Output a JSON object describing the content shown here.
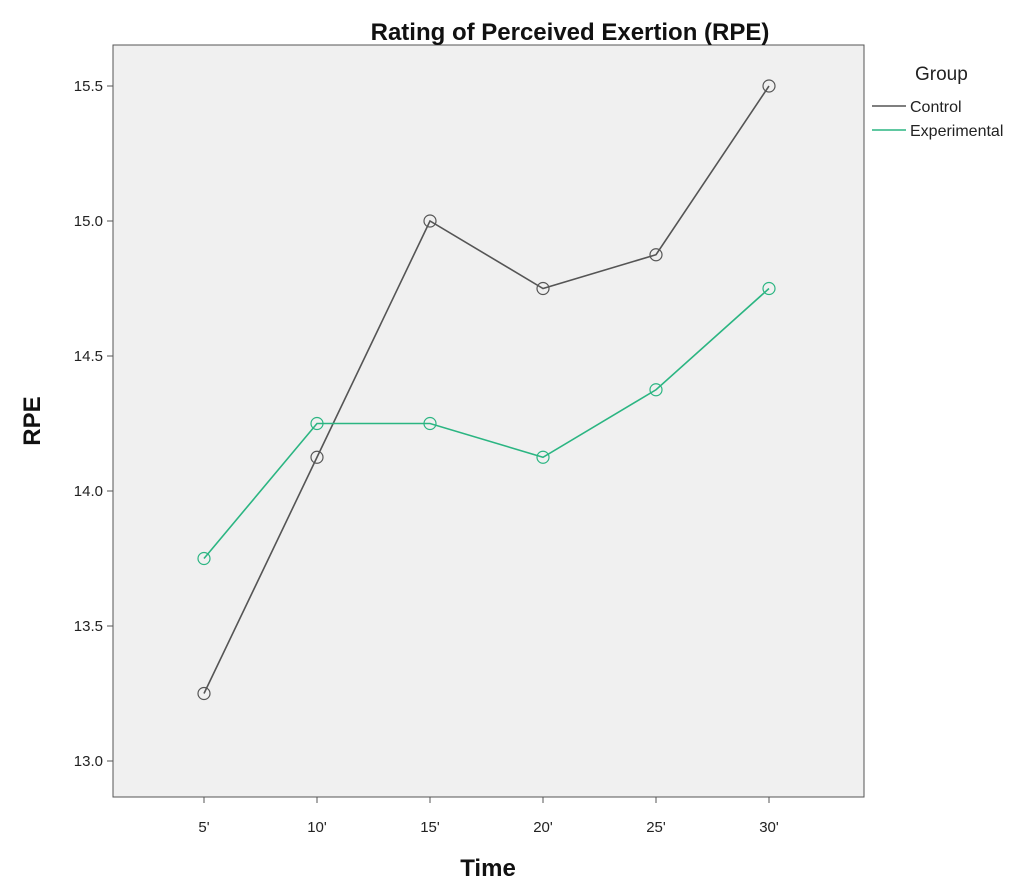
{
  "chart_data": {
    "type": "line",
    "title": "Rating of Perceived Exertion (RPE)",
    "xlabel": "Time",
    "ylabel": "RPE",
    "categories": [
      "5'",
      "10'",
      "15'",
      "20'",
      "25'",
      "30'"
    ],
    "ylim": [
      12.95,
      15.6
    ],
    "yticks": [
      13.0,
      13.5,
      14.0,
      14.5,
      15.0,
      15.5
    ],
    "ytick_labels": [
      "13.0",
      "13.5",
      "14.0",
      "14.5",
      "15.0",
      "15.5"
    ],
    "grid": false,
    "legend": {
      "title": "Group",
      "placement": "right"
    },
    "series": [
      {
        "name": "Control",
        "color": "#555555",
        "values": [
          13.25,
          14.125,
          15.0,
          14.75,
          14.875,
          15.5
        ]
      },
      {
        "name": "Experimental",
        "color": "#2bb582",
        "values": [
          13.75,
          14.25,
          14.25,
          14.125,
          14.375,
          14.75
        ]
      }
    ],
    "plot_background": "#f0f0f0",
    "marker": "open-circle"
  }
}
